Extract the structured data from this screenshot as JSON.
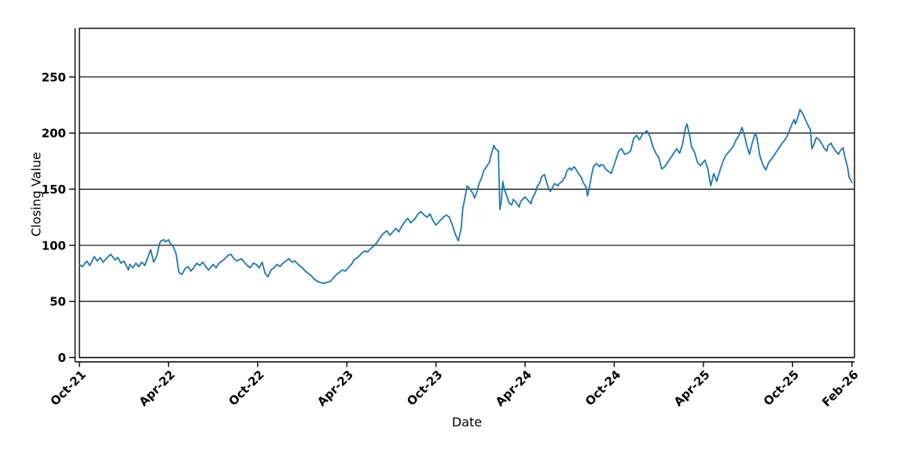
{
  "figure": {
    "background": "#ffffff",
    "text_color": "#000000"
  },
  "chart_data": {
    "type": "line",
    "title": "",
    "xlabel": "Date",
    "ylabel": "Closing Value",
    "legend": "none",
    "grid": "horizontal-black-gridlines",
    "x_unit": "months since Oct-2021",
    "xlim_months": [
      0,
      52
    ],
    "ylim": [
      0,
      293
    ],
    "y_ticks": [
      0,
      50,
      100,
      150,
      200,
      250
    ],
    "x_ticks": [
      {
        "m": 0,
        "label": "Oct-21"
      },
      {
        "m": 6,
        "label": "Apr-22"
      },
      {
        "m": 12,
        "label": "Oct-22"
      },
      {
        "m": 18,
        "label": "Apr-23"
      },
      {
        "m": 24,
        "label": "Oct-23"
      },
      {
        "m": 30,
        "label": "Apr-24"
      },
      {
        "m": 36,
        "label": "Oct-24"
      },
      {
        "m": 42,
        "label": "Apr-25"
      },
      {
        "m": 48,
        "label": "Oct-25"
      },
      {
        "m": 52,
        "label": "Feb-26"
      }
    ],
    "series": [
      {
        "name": "Closing Value",
        "color": "#1f77b4",
        "points": [
          [
            0,
            83
          ],
          [
            0.2,
            81
          ],
          [
            0.5,
            86
          ],
          [
            0.7,
            82
          ],
          [
            1,
            90
          ],
          [
            1.2,
            86
          ],
          [
            1.4,
            89
          ],
          [
            1.6,
            85
          ],
          [
            1.8,
            88
          ],
          [
            2.1,
            92
          ],
          [
            2.4,
            87
          ],
          [
            2.6,
            89
          ],
          [
            2.8,
            84
          ],
          [
            3,
            86
          ],
          [
            3.3,
            78
          ],
          [
            3.4,
            83
          ],
          [
            3.6,
            80
          ],
          [
            3.8,
            84
          ],
          [
            4,
            81
          ],
          [
            4.2,
            85
          ],
          [
            4.4,
            82
          ],
          [
            4.8,
            96
          ],
          [
            5,
            85
          ],
          [
            5.2,
            90
          ],
          [
            5.4,
            102
          ],
          [
            5.5,
            104
          ],
          [
            5.7,
            105
          ],
          [
            5.8,
            103
          ],
          [
            6,
            105
          ],
          [
            6.1,
            102
          ],
          [
            6.3,
            99
          ],
          [
            6.5,
            93
          ],
          [
            6.7,
            76
          ],
          [
            6.9,
            74
          ],
          [
            7.1,
            79
          ],
          [
            7.3,
            81
          ],
          [
            7.5,
            77
          ],
          [
            7.7,
            80
          ],
          [
            7.9,
            84
          ],
          [
            8.1,
            82
          ],
          [
            8.3,
            85
          ],
          [
            8.5,
            81
          ],
          [
            8.7,
            78
          ],
          [
            9,
            83
          ],
          [
            9.2,
            80
          ],
          [
            9.4,
            84
          ],
          [
            9.6,
            86
          ],
          [
            9.8,
            88
          ],
          [
            10,
            91
          ],
          [
            10.2,
            92
          ],
          [
            10.4,
            88
          ],
          [
            10.6,
            86
          ],
          [
            10.9,
            88
          ],
          [
            11.1,
            85
          ],
          [
            11.3,
            82
          ],
          [
            11.5,
            80
          ],
          [
            11.7,
            84
          ],
          [
            11.9,
            83
          ],
          [
            12.1,
            80
          ],
          [
            12.3,
            85
          ],
          [
            12.5,
            75
          ],
          [
            12.7,
            72
          ],
          [
            12.9,
            78
          ],
          [
            13.1,
            80
          ],
          [
            13.3,
            83
          ],
          [
            13.5,
            81
          ],
          [
            13.7,
            84
          ],
          [
            13.9,
            86
          ],
          [
            14.1,
            88
          ],
          [
            14.3,
            85
          ],
          [
            14.5,
            86
          ],
          [
            14.8,
            82
          ],
          [
            15,
            80
          ],
          [
            15.2,
            77
          ],
          [
            15.4,
            75
          ],
          [
            15.6,
            73
          ],
          [
            15.8,
            70
          ],
          [
            16,
            68
          ],
          [
            16.2,
            67
          ],
          [
            16.4,
            66
          ],
          [
            16.7,
            67
          ],
          [
            16.9,
            68
          ],
          [
            17.1,
            71
          ],
          [
            17.3,
            74
          ],
          [
            17.5,
            76
          ],
          [
            17.7,
            78
          ],
          [
            17.9,
            77
          ],
          [
            18.1,
            80
          ],
          [
            18.3,
            83
          ],
          [
            18.5,
            87
          ],
          [
            18.8,
            90
          ],
          [
            19,
            93
          ],
          [
            19.2,
            95
          ],
          [
            19.4,
            94
          ],
          [
            19.6,
            97
          ],
          [
            19.8,
            99
          ],
          [
            20,
            102
          ],
          [
            20.2,
            106
          ],
          [
            20.4,
            110
          ],
          [
            20.7,
            113
          ],
          [
            20.9,
            109
          ],
          [
            21.1,
            112
          ],
          [
            21.3,
            115
          ],
          [
            21.5,
            112
          ],
          [
            21.7,
            117
          ],
          [
            21.9,
            121
          ],
          [
            22.1,
            124
          ],
          [
            22.3,
            120
          ],
          [
            22.6,
            124
          ],
          [
            22.8,
            128
          ],
          [
            23,
            130
          ],
          [
            23.2,
            127
          ],
          [
            23.4,
            125
          ],
          [
            23.6,
            128
          ],
          [
            23.8,
            122
          ],
          [
            24,
            118
          ],
          [
            24.2,
            121
          ],
          [
            24.5,
            125
          ],
          [
            24.7,
            127
          ],
          [
            24.9,
            125
          ],
          [
            25.1,
            118
          ],
          [
            25.3,
            110
          ],
          [
            25.5,
            104
          ],
          [
            25.7,
            115
          ],
          [
            25.8,
            132
          ],
          [
            26,
            146
          ],
          [
            26.1,
            153
          ],
          [
            26.3,
            150
          ],
          [
            26.5,
            146
          ],
          [
            26.6,
            142
          ],
          [
            26.8,
            149
          ],
          [
            26.9,
            155
          ],
          [
            27.1,
            161
          ],
          [
            27.2,
            166
          ],
          [
            27.4,
            170
          ],
          [
            27.6,
            174
          ],
          [
            27.7,
            180
          ],
          [
            27.9,
            189
          ],
          [
            28,
            186
          ],
          [
            28.2,
            184
          ],
          [
            28.3,
            132
          ],
          [
            28.4,
            140
          ],
          [
            28.5,
            157
          ],
          [
            28.6,
            150
          ],
          [
            28.8,
            143
          ],
          [
            28.9,
            138
          ],
          [
            29.1,
            136
          ],
          [
            29.2,
            141
          ],
          [
            29.4,
            138
          ],
          [
            29.6,
            134
          ],
          [
            29.7,
            139
          ],
          [
            29.9,
            142
          ],
          [
            30,
            143
          ],
          [
            30.2,
            140
          ],
          [
            30.4,
            137
          ],
          [
            30.5,
            142
          ],
          [
            30.7,
            147
          ],
          [
            30.8,
            152
          ],
          [
            31,
            156
          ],
          [
            31.1,
            161
          ],
          [
            31.3,
            163
          ],
          [
            31.5,
            154
          ],
          [
            31.6,
            150
          ],
          [
            31.7,
            148
          ],
          [
            31.9,
            153
          ],
          [
            32,
            155
          ],
          [
            32.2,
            153
          ],
          [
            32.3,
            155
          ],
          [
            32.5,
            157
          ],
          [
            32.7,
            161
          ],
          [
            32.8,
            166
          ],
          [
            33,
            169
          ],
          [
            33.1,
            167
          ],
          [
            33.3,
            170
          ],
          [
            33.4,
            168
          ],
          [
            33.6,
            164
          ],
          [
            33.8,
            160
          ],
          [
            33.9,
            156
          ],
          [
            34.1,
            152
          ],
          [
            34.2,
            144
          ],
          [
            34.3,
            150
          ],
          [
            34.5,
            164
          ],
          [
            34.6,
            170
          ],
          [
            34.8,
            173
          ],
          [
            35,
            170
          ],
          [
            35.1,
            172
          ],
          [
            35.3,
            171
          ],
          [
            35.4,
            168
          ],
          [
            35.6,
            166
          ],
          [
            35.8,
            164
          ],
          [
            36,
            172
          ],
          [
            36.3,
            184
          ],
          [
            36.5,
            186
          ],
          [
            36.7,
            181
          ],
          [
            36.9,
            182
          ],
          [
            37.1,
            184
          ],
          [
            37.3,
            195
          ],
          [
            37.5,
            198
          ],
          [
            37.7,
            194
          ],
          [
            37.9,
            199
          ],
          [
            38.2,
            202
          ],
          [
            38.4,
            197
          ],
          [
            38.6,
            188
          ],
          [
            38.8,
            182
          ],
          [
            39,
            178
          ],
          [
            39.2,
            168
          ],
          [
            39.4,
            170
          ],
          [
            39.6,
            174
          ],
          [
            39.9,
            180
          ],
          [
            40.2,
            186
          ],
          [
            40.4,
            182
          ],
          [
            40.6,
            190
          ],
          [
            40.8,
            205
          ],
          [
            40.9,
            208
          ],
          [
            41.1,
            196
          ],
          [
            41.2,
            188
          ],
          [
            41.4,
            183
          ],
          [
            41.6,
            174
          ],
          [
            41.8,
            171
          ],
          [
            42.1,
            176
          ],
          [
            42.3,
            168
          ],
          [
            42.5,
            153
          ],
          [
            42.7,
            164
          ],
          [
            42.9,
            157
          ],
          [
            43.1,
            166
          ],
          [
            43.3,
            174
          ],
          [
            43.5,
            180
          ],
          [
            43.7,
            183
          ],
          [
            44,
            188
          ],
          [
            44.2,
            194
          ],
          [
            44.4,
            198
          ],
          [
            44.6,
            205
          ],
          [
            44.8,
            196
          ],
          [
            44.9,
            190
          ],
          [
            45.1,
            181
          ],
          [
            45.3,
            192
          ],
          [
            45.5,
            200
          ],
          [
            45.6,
            196
          ],
          [
            45.8,
            180
          ],
          [
            46,
            172
          ],
          [
            46.2,
            167
          ],
          [
            46.4,
            174
          ],
          [
            46.6,
            177
          ],
          [
            46.8,
            181
          ],
          [
            47.1,
            187
          ],
          [
            47.3,
            191
          ],
          [
            47.5,
            194
          ],
          [
            47.7,
            199
          ],
          [
            47.9,
            206
          ],
          [
            48.1,
            212
          ],
          [
            48.2,
            208
          ],
          [
            48.4,
            216
          ],
          [
            48.5,
            221
          ],
          [
            48.7,
            217
          ],
          [
            48.8,
            214
          ],
          [
            49,
            208
          ],
          [
            49.2,
            203
          ],
          [
            49.3,
            186
          ],
          [
            49.5,
            192
          ],
          [
            49.6,
            196
          ],
          [
            49.8,
            194
          ],
          [
            50,
            190
          ],
          [
            50.1,
            187
          ],
          [
            50.3,
            184
          ],
          [
            50.4,
            189
          ],
          [
            50.6,
            191
          ],
          [
            50.7,
            188
          ],
          [
            50.9,
            184
          ],
          [
            51.1,
            181
          ],
          [
            51.2,
            184
          ],
          [
            51.4,
            187
          ],
          [
            51.5,
            180
          ],
          [
            51.7,
            170
          ],
          [
            51.8,
            161
          ],
          [
            52,
            156
          ]
        ]
      }
    ]
  }
}
